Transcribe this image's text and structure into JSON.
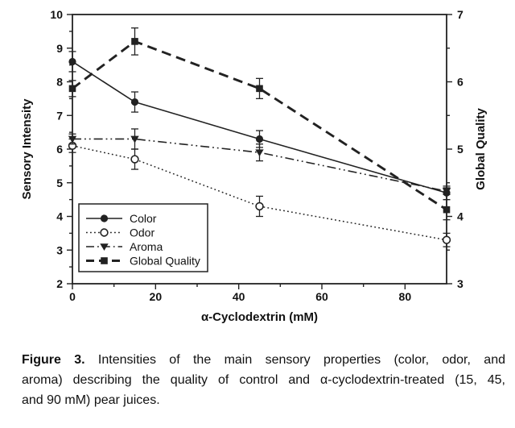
{
  "chart_data": {
    "type": "line",
    "x": [
      0,
      15,
      45,
      90
    ],
    "xlabel": "α-Cyclodextrin (mM)",
    "ylabel_left": "Sensory Intensity",
    "ylabel_right": "Global Quality",
    "xlim": [
      0,
      90
    ],
    "ylim_left": [
      2,
      10
    ],
    "ylim_right": [
      3,
      7
    ],
    "x_ticks": [
      0,
      20,
      40,
      60,
      80
    ],
    "x_minor_ticks": [
      10,
      30,
      50,
      70
    ],
    "y_ticks_left": [
      2,
      3,
      4,
      5,
      6,
      7,
      8,
      9,
      10
    ],
    "y_minor_ticks_left": [
      2.5,
      3.5,
      4.5,
      5.5,
      6.5,
      7.5,
      8.5,
      9.5
    ],
    "y_ticks_right": [
      3,
      4,
      5,
      6,
      7
    ],
    "y_minor_ticks_right": [
      3.5,
      4.5,
      5.5,
      6.5
    ],
    "grid": false,
    "legend_position": "lower-left",
    "error_bars": true,
    "series": [
      {
        "name": "Color",
        "axis": "left",
        "marker": "circle-filled",
        "line": "solid",
        "values": [
          8.6,
          7.4,
          6.3,
          4.7
        ],
        "errors": [
          0.3,
          0.3,
          0.25,
          0.2
        ]
      },
      {
        "name": "Odor",
        "axis": "left",
        "marker": "circle-open",
        "line": "dotted",
        "values": [
          6.1,
          5.7,
          4.3,
          3.3
        ],
        "errors": [
          0.2,
          0.3,
          0.3,
          0.2
        ]
      },
      {
        "name": "Aroma",
        "axis": "left",
        "marker": "triangle-down-filled",
        "line": "dash-dot-dot",
        "values": [
          6.3,
          6.3,
          5.9,
          4.75
        ],
        "errors": [
          0.15,
          0.3,
          0.25,
          0.1
        ]
      },
      {
        "name": "Global Quality",
        "axis": "right",
        "marker": "square-filled",
        "line": "dashed",
        "values": [
          5.9,
          6.6,
          5.9,
          4.1
        ],
        "errors": [
          0.12,
          0.2,
          0.15,
          0.15
        ]
      }
    ],
    "ink_color": "#222222",
    "background": "#ffffff"
  },
  "caption": {
    "label": "Figure 3.",
    "line1_rest": "Intensities of the main sensory properties (color, odor, and",
    "line2": "aroma) describing the quality of control and α-cyclodextrin-treated (15, 45,",
    "line3": "and 90 mM) pear juices."
  }
}
